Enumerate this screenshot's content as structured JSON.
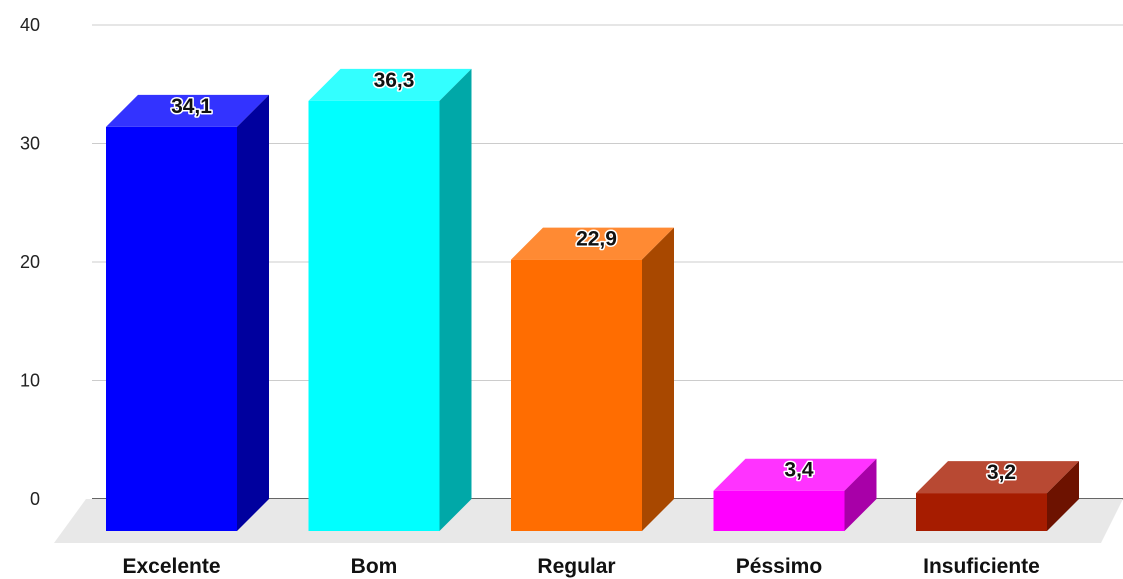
{
  "chart_data": {
    "type": "bar",
    "categories": [
      "Excelente",
      "Bom",
      "Regular",
      "Péssimo",
      "Insuficiente"
    ],
    "values": [
      34.1,
      36.3,
      22.9,
      3.4,
      3.2
    ],
    "value_labels": [
      "34,1",
      "36,3",
      "22,9",
      "3,4",
      "3,2"
    ],
    "yticks": [
      0,
      10,
      20,
      30,
      40
    ],
    "ylim": [
      0,
      40
    ],
    "grid": true,
    "style": "3d",
    "colors": [
      {
        "front": "#0000ff",
        "top": "#3333ff",
        "side": "#00009e"
      },
      {
        "front": "#00ffff",
        "top": "#33ffff",
        "side": "#00a8a8"
      },
      {
        "front": "#ff6d01",
        "top": "#ff8a33",
        "side": "#a84800"
      },
      {
        "front": "#ff00ff",
        "top": "#ff33ff",
        "side": "#a800a8"
      },
      {
        "front": "#a61c00",
        "top": "#b84933",
        "side": "#6d1200"
      }
    ],
    "title": "",
    "xlabel": "",
    "ylabel": ""
  }
}
